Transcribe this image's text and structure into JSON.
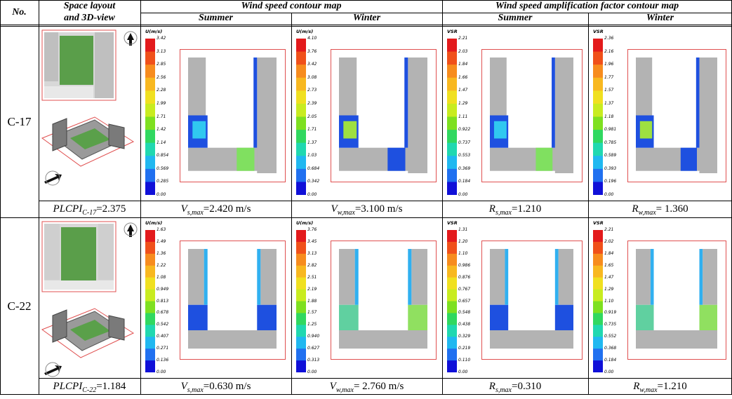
{
  "header": {
    "no": "No.",
    "layout": [
      "Space layout",
      "and 3D-view"
    ],
    "wind_speed": "Wind speed contour map",
    "amplification": "Wind speed amplification factor contour map",
    "seasons": [
      "Summer",
      "Winter",
      "Summer",
      "Winter"
    ]
  },
  "rows": [
    {
      "id": "C-17",
      "layout_caption": {
        "text": "PLCPI",
        "sub": "C-17",
        "value": "=2.375"
      },
      "maps": [
        {
          "legend_title": "U(m/s)",
          "legend": [
            "3.42",
            "3.13",
            "2.85",
            "2.56",
            "2.28",
            "1.99",
            "1.71",
            "1.42",
            "1.14",
            "0.854",
            "0.569",
            "0.285",
            "0.00"
          ],
          "caption": {
            "text": "V",
            "sub": "s,max",
            "value": "=2.420 m/s"
          }
        },
        {
          "legend_title": "U(m/s)",
          "legend": [
            "4.10",
            "3.76",
            "3.42",
            "3.08",
            "2.73",
            "2.39",
            "2.05",
            "1.71",
            "1.37",
            "1.03",
            "0.684",
            "0.342",
            "0.00"
          ],
          "caption": {
            "text": "V",
            "sub": "w,max",
            "value": "=3.100 m/s"
          }
        },
        {
          "legend_title": "VSR",
          "legend": [
            "2.21",
            "2.03",
            "1.84",
            "1.66",
            "1.47",
            "1.29",
            "1.11",
            "0.922",
            "0.737",
            "0.553",
            "0.369",
            "0.184",
            "0.00"
          ],
          "caption": {
            "text": "R",
            "sub": "s,max",
            "value": "=1.210"
          }
        },
        {
          "legend_title": "VSR",
          "legend": [
            "2.36",
            "2.16",
            "1.96",
            "1.77",
            "1.57",
            "1.37",
            "1.18",
            "0.981",
            "0.785",
            "0.589",
            "0.393",
            "0.196",
            "0.00"
          ],
          "caption": {
            "text": "R",
            "sub": "w,max",
            "value": "= 1.360"
          }
        }
      ]
    },
    {
      "id": "C-22",
      "layout_caption": {
        "text": "PLCPI",
        "sub": "C-22",
        "value": "=1.184"
      },
      "maps": [
        {
          "legend_title": "U(m/s)",
          "legend": [
            "1.63",
            "1.49",
            "1.36",
            "1.22",
            "1.08",
            "0.949",
            "0.813",
            "0.678",
            "0.542",
            "0.407",
            "0.271",
            "0.136",
            "0.00"
          ],
          "caption": {
            "text": "V",
            "sub": "s,max",
            "value": "=0.630 m/s"
          }
        },
        {
          "legend_title": "U(m/s)",
          "legend": [
            "3.76",
            "3.45",
            "3.13",
            "2.82",
            "2.51",
            "2.19",
            "1.88",
            "1.57",
            "1.25",
            "0.940",
            "0.627",
            "0.313",
            "0.00"
          ],
          "caption": {
            "text": "V",
            "sub": "w,max",
            "value": "= 2.760 m/s"
          }
        },
        {
          "legend_title": "VSR",
          "legend": [
            "1.31",
            "1.20",
            "1.10",
            "0.986",
            "0.876",
            "0.767",
            "0.657",
            "0.548",
            "0.438",
            "0.329",
            "0.219",
            "0.110",
            "0.00"
          ],
          "caption": {
            "text": "R",
            "sub": "s,max",
            "value": "=0.310"
          }
        },
        {
          "legend_title": "VSR",
          "legend": [
            "2.21",
            "2.02",
            "1.84",
            "1.65",
            "1.47",
            "1.29",
            "1.10",
            "0.919",
            "0.735",
            "0.552",
            "0.368",
            "0.184",
            "0.00"
          ],
          "caption": {
            "text": "R",
            "sub": "w,max",
            "value": "=1.210"
          }
        }
      ]
    }
  ]
}
